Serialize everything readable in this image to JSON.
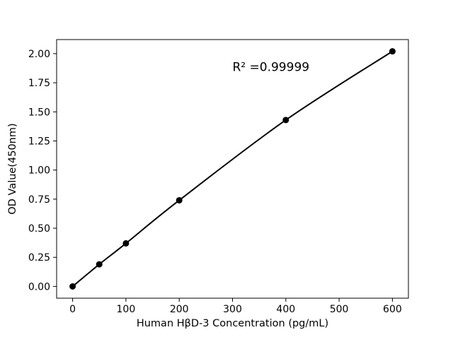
{
  "chart_data": {
    "type": "line",
    "x": [
      0,
      50,
      100,
      200,
      400,
      600
    ],
    "y": [
      0.0,
      0.19,
      0.37,
      0.74,
      1.43,
      2.02
    ],
    "title": "",
    "xlabel": "Human HβD-3 Concentration (pg/mL)",
    "ylabel": "OD Value(450nm)",
    "xlim": [
      -30,
      630
    ],
    "ylim": [
      -0.101,
      2.121
    ],
    "xticks": [
      0,
      100,
      200,
      300,
      400,
      500,
      600
    ],
    "yticks": [
      0.0,
      0.25,
      0.5,
      0.75,
      1.0,
      1.25,
      1.5,
      1.75,
      2.0
    ],
    "annotation": {
      "text": "R² =0.99999",
      "x": 300,
      "y": 1.85
    },
    "grid": false,
    "legend": null,
    "line_color": "#000000",
    "marker_color": "#000000",
    "marker_radius": 4.5,
    "background": "#ffffff"
  }
}
